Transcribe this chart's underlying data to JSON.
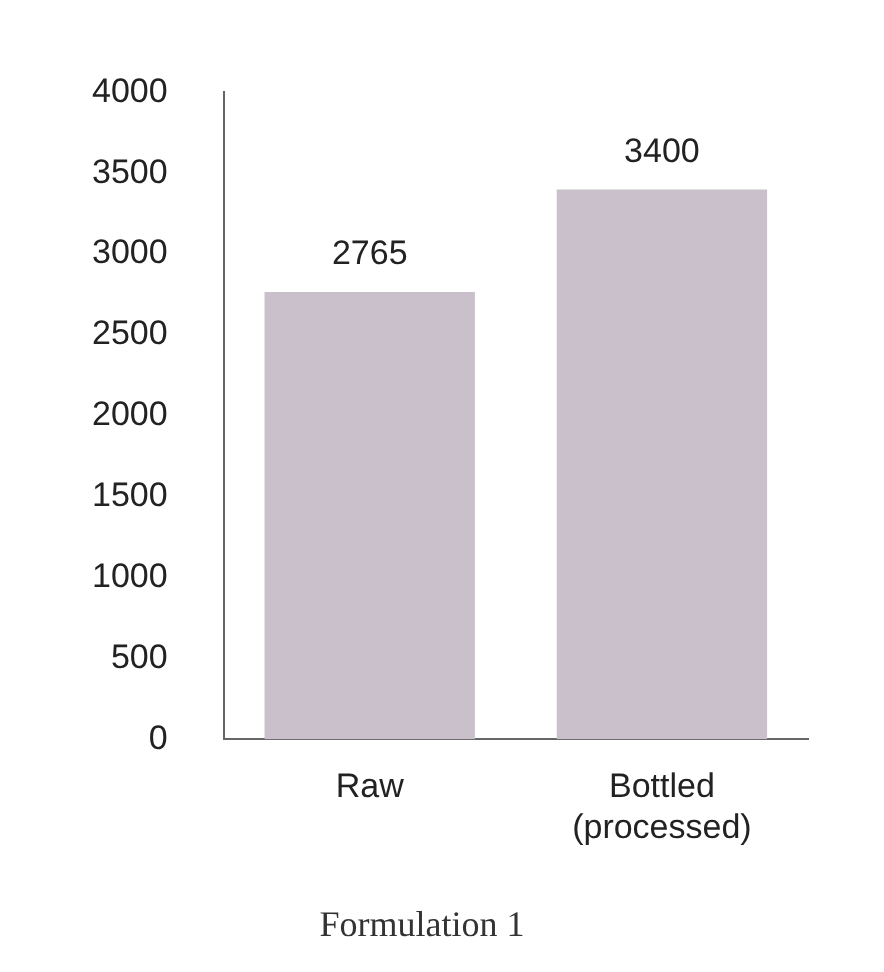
{
  "chart_data": {
    "type": "bar",
    "title": "Formulation 1",
    "categories": [
      "Raw",
      "Bottled (processed)"
    ],
    "values": [
      2765,
      3400
    ],
    "color": "#c9c0cc",
    "ylim": [
      0,
      4000
    ],
    "yticks": [
      0,
      500,
      1000,
      1500,
      2000,
      2500,
      3000,
      3500,
      4000
    ],
    "grid": false,
    "legend": false,
    "data_labels": true
  }
}
